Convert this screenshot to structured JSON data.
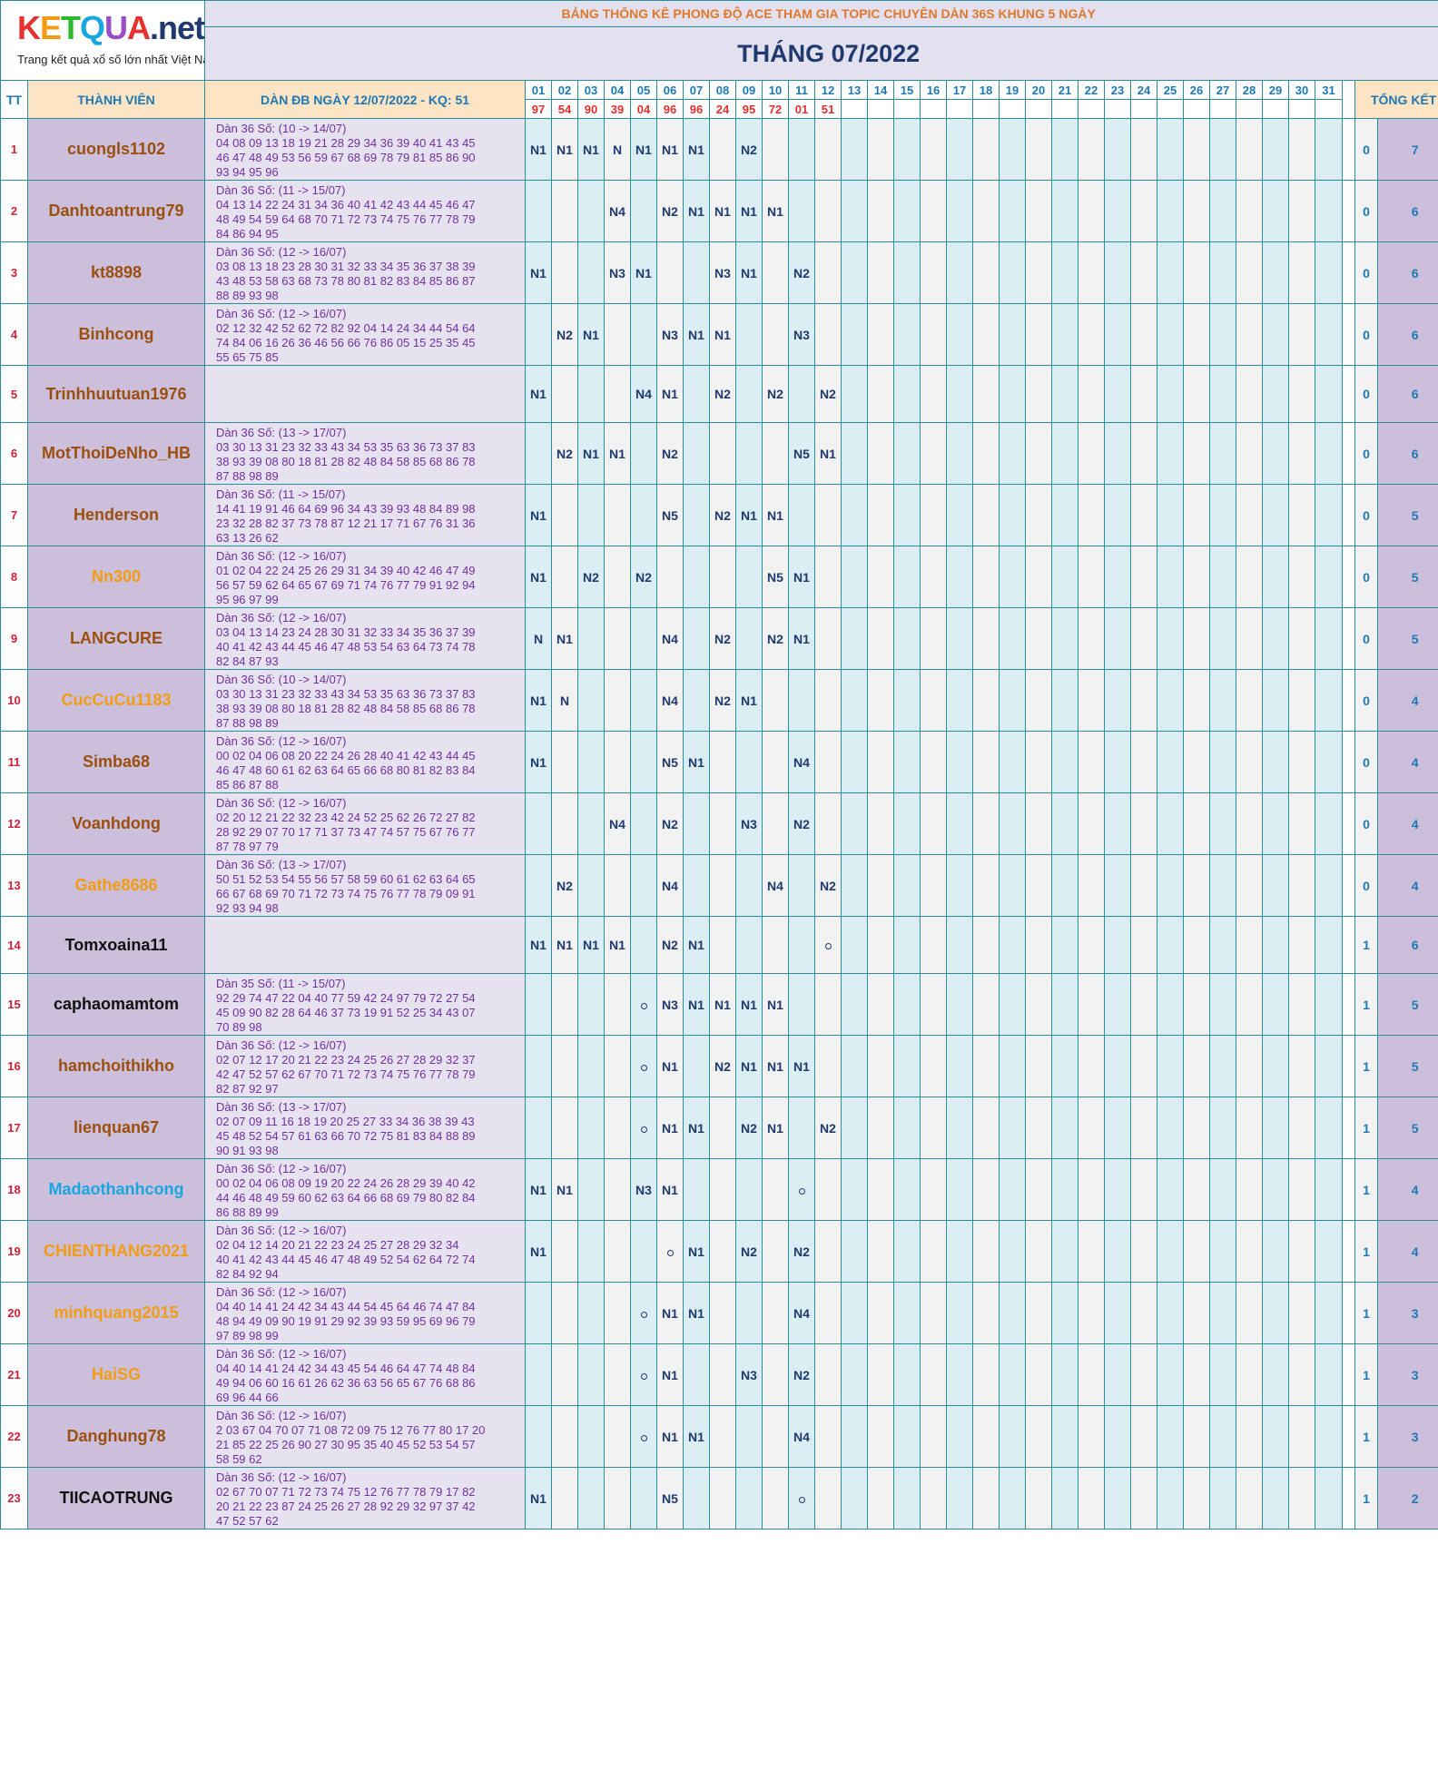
{
  "logo": {
    "brand": "KETQUA.net",
    "brand_prefix": "KETQUA",
    "brand_suffix": ".net",
    "tagline": "Trang kết quả xổ số lớn nhất Việt Nam"
  },
  "title": "BẢNG THỐNG KÊ PHONG ĐỘ ACE THAM GIA TOPIC CHUYÊN DÀN 36S KHUNG 5 NGÀY",
  "month": "THÁNG 07/2022",
  "headers": {
    "tt": "TT",
    "member": "THÀNH VIÊN",
    "dan": "DÀN ĐB NGÀY 12/07/2022 - KQ: 51",
    "total": "TỔNG KẾT"
  },
  "days": [
    "01",
    "02",
    "03",
    "04",
    "05",
    "06",
    "07",
    "08",
    "09",
    "10",
    "11",
    "12",
    "13",
    "14",
    "15",
    "16",
    "17",
    "18",
    "19",
    "20",
    "21",
    "22",
    "23",
    "24",
    "25",
    "26",
    "27",
    "28",
    "29",
    "30",
    "31"
  ],
  "results": [
    "97",
    "54",
    "90",
    "39",
    "04",
    "96",
    "96",
    "24",
    "95",
    "72",
    "01",
    "51",
    "",
    "",
    "",
    "",
    "",
    "",
    "",
    "",
    "",
    "",
    "",
    "",
    "",
    "",
    "",
    "",
    "",
    "",
    "",
    ""
  ],
  "colors": {
    "brown": "#9c4f0d",
    "orange": "#f39c12",
    "black": "#111111",
    "blue": "#1ba6e0",
    "cell_text": "#1f3a6e",
    "border": "#2b8c9a"
  },
  "rows": [
    {
      "tt": "1",
      "name": "cuongls1102",
      "color": "brown",
      "dan": [
        "Dàn 36 Số: (10 -> 14/07)",
        "04 08 09 13 18 19 21 28 29 34 36 39 40 41 43 45",
        "46 47 48 49 53 56 59 67 68 69 78 79 81 85 86 90",
        "93 94 95 96"
      ],
      "cells": [
        "N1",
        "N1",
        "N1",
        "N",
        "N1",
        "N1",
        "N1",
        "",
        "N2",
        "",
        "",
        ""
      ],
      "k1": "0",
      "k2": "7"
    },
    {
      "tt": "2",
      "name": "Danhtoantrung79",
      "color": "brown",
      "dan": [
        "Dàn 36 Số: (11 -> 15/07)",
        "04 13 14 22 24 31 34 36 40 41 42 43 44 45 46 47",
        "48 49 54 59 64 68 70 71 72 73 74 75 76 77 78 79",
        "84 86 94 95"
      ],
      "cells": [
        "",
        "",
        "",
        "N4",
        "",
        "N2",
        "N1",
        "N1",
        "N1",
        "N1",
        "",
        ""
      ],
      "k1": "0",
      "k2": "6"
    },
    {
      "tt": "3",
      "name": "kt8898",
      "color": "brown",
      "dan": [
        "Dàn 36 Số: (12 -> 16/07)",
        "03 08 13 18 23 28 30 31 32 33 34 35 36 37 38 39",
        "43 48 53 58 63 68 73 78 80 81 82 83 84 85 86 87",
        "88 89 93 98"
      ],
      "cells": [
        "N1",
        "",
        "",
        "N3",
        "N1",
        "",
        "",
        "N3",
        "N1",
        "",
        "N2",
        ""
      ],
      "k1": "0",
      "k2": "6"
    },
    {
      "tt": "4",
      "name": "Binhcong",
      "color": "brown",
      "dan": [
        "Dàn 36 Số: (12 -> 16/07)",
        "02 12 32 42 52 62 72 82 92 04 14 24 34 44 54 64",
        "74 84 06 16 26 36 46 56 66 76 86 05 15 25 35 45",
        "55 65 75 85"
      ],
      "cells": [
        "",
        "N2",
        "N1",
        "",
        "",
        "N3",
        "N1",
        "N1",
        "",
        "",
        "N3",
        ""
      ],
      "k1": "0",
      "k2": "6"
    },
    {
      "tt": "5",
      "name": "Trinhhuutuan1976",
      "color": "brown",
      "dan": [],
      "cells": [
        "N1",
        "",
        "",
        "",
        "N4",
        "N1",
        "",
        "N2",
        "",
        "N2",
        "",
        "N2"
      ],
      "k1": "0",
      "k2": "6"
    },
    {
      "tt": "6",
      "name": "MotThoiDeNho_HB",
      "color": "brown",
      "dan": [
        "Dàn 36 Số: (13 -> 17/07)",
        "03 30 13 31 23 32 33 43 34 53 35 63 36 73 37 83",
        "38 93 39 08 80 18 81 28 82 48 84 58 85 68 86 78",
        "87 88 98 89"
      ],
      "cells": [
        "",
        "N2",
        "N1",
        "N1",
        "",
        "N2",
        "",
        "",
        "",
        "",
        "N5",
        "N1"
      ],
      "k1": "0",
      "k2": "6"
    },
    {
      "tt": "7",
      "name": "Henderson",
      "color": "brown",
      "dan": [
        "Dàn 36 Số: (11 -> 15/07)",
        "14 41 19 91 46 64 69 96 34 43 39 93 48 84 89 98",
        "23 32 28 82 37 73 78 87 12 21 17 71 67 76 31 36",
        "63 13 26 62"
      ],
      "cells": [
        "N1",
        "",
        "",
        "",
        "",
        "N5",
        "",
        "N2",
        "N1",
        "N1",
        "",
        ""
      ],
      "k1": "0",
      "k2": "5"
    },
    {
      "tt": "8",
      "name": "Nn300",
      "color": "orange",
      "dan": [
        "Dàn 36 Số: (12 -> 16/07)",
        "01 02 04 22 24 25 26 29 31 34 39 40 42 46 47 49",
        "56 57 59 62 64 65 67 69 71 74 76 77 79 91 92 94",
        "95 96 97 99"
      ],
      "cells": [
        "N1",
        "",
        "N2",
        "",
        "N2",
        "",
        "",
        "",
        "",
        "N5",
        "N1",
        ""
      ],
      "k1": "0",
      "k2": "5"
    },
    {
      "tt": "9",
      "name": "LANGCURE",
      "color": "brown",
      "dan": [
        "Dàn 36 Số: (12 -> 16/07)",
        "03 04 13 14 23 24 28 30 31 32 33 34 35 36 37 39",
        "40 41 42 43 44 45 46 47 48 53 54 63 64 73 74 78",
        "82 84 87 93"
      ],
      "cells": [
        "N",
        "N1",
        "",
        "",
        "",
        "N4",
        "",
        "N2",
        "",
        "N2",
        "N1",
        ""
      ],
      "k1": "0",
      "k2": "5"
    },
    {
      "tt": "10",
      "name": "CucCuCu1183",
      "color": "orange",
      "dan": [
        "Dàn 36 Số: (10 -> 14/07)",
        "03 30 13 31 23 32 33 43 34 53 35 63 36 73 37 83",
        "38 93 39 08 80 18 81 28 82 48 84 58 85 68 86 78",
        "87 88 98 89"
      ],
      "cells": [
        "N1",
        "N",
        "",
        "",
        "",
        "N4",
        "",
        "N2",
        "N1",
        "",
        "",
        ""
      ],
      "k1": "0",
      "k2": "4"
    },
    {
      "tt": "11",
      "name": "Simba68",
      "color": "brown",
      "dan": [
        "Dàn 36 Số: (12 -> 16/07)",
        "00 02 04 06 08 20 22 24 26 28 40 41 42 43 44 45",
        "46 47 48 60 61 62 63 64 65 66 68 80 81 82 83 84",
        "85 86 87 88"
      ],
      "cells": [
        "N1",
        "",
        "",
        "",
        "",
        "N5",
        "N1",
        "",
        "",
        "",
        "N4",
        ""
      ],
      "k1": "0",
      "k2": "4"
    },
    {
      "tt": "12",
      "name": "Voanhdong",
      "color": "brown",
      "dan": [
        "Dàn 36 Số: (12 -> 16/07)",
        "02 20 12 21 22 32 23 42 24 52 25 62 26 72 27 82",
        "28 92 29 07 70 17 71 37 73 47 74 57 75 67 76 77",
        "87 78 97 79"
      ],
      "cells": [
        "",
        "",
        "",
        "N4",
        "",
        "N2",
        "",
        "",
        "N3",
        "",
        "N2",
        ""
      ],
      "k1": "0",
      "k2": "4"
    },
    {
      "tt": "13",
      "name": "Gathe8686",
      "color": "orange",
      "dan": [
        "Dàn 36 Số: (13 -> 17/07)",
        "50 51 52 53 54 55 56 57 58 59 60 61 62 63 64 65",
        "66 67 68 69 70 71 72 73 74 75 76 77 78 79 09 91",
        "92 93 94 98"
      ],
      "cells": [
        "",
        "N2",
        "",
        "",
        "",
        "N4",
        "",
        "",
        "",
        "N4",
        "",
        "N2"
      ],
      "k1": "0",
      "k2": "4"
    },
    {
      "tt": "14",
      "name": "Tomxoaina11",
      "color": "black",
      "dan": [],
      "cells": [
        "N1",
        "N1",
        "N1",
        "N1",
        "",
        "N2",
        "N1",
        "",
        "",
        "",
        "",
        "o"
      ],
      "k1": "1",
      "k2": "6"
    },
    {
      "tt": "15",
      "name": "caphaomamtom",
      "color": "black",
      "dan": [
        "Dàn 35 Số: (11 -> 15/07)",
        "92 29 74 47 22 04 40 77 59 42 24 97 79 72 27 54",
        "45 09 90 82 28 64 46 37 73 19 91 52 25 34 43 07",
        "70 89 98"
      ],
      "cells": [
        "",
        "",
        "",
        "",
        "o",
        "N3",
        "N1",
        "N1",
        "N1",
        "N1",
        "",
        ""
      ],
      "k1": "1",
      "k2": "5"
    },
    {
      "tt": "16",
      "name": "hamchoithikho",
      "color": "brown",
      "dan": [
        "Dàn 36 Số: (12 -> 16/07)",
        "02 07 12 17 20 21 22 23 24 25 26 27 28 29 32 37",
        "42 47 52 57 62 67 70 71 72 73 74 75 76 77 78 79",
        "82 87 92 97"
      ],
      "cells": [
        "",
        "",
        "",
        "",
        "o",
        "N1",
        "",
        "N2",
        "N1",
        "N1",
        "N1",
        ""
      ],
      "k1": "1",
      "k2": "5"
    },
    {
      "tt": "17",
      "name": "lienquan67",
      "color": "brown",
      "dan": [
        "Dàn 36 Số: (13 -> 17/07)",
        "02 07 09 11 16 18 19 20 25 27 33 34 36 38 39 43",
        "45 48 52 54 57 61 63 66 70 72 75 81 83 84 88 89",
        "90 91 93 98"
      ],
      "cells": [
        "",
        "",
        "",
        "",
        "o",
        "N1",
        "N1",
        "",
        "N2",
        "N1",
        "",
        "N2"
      ],
      "k1": "1",
      "k2": "5"
    },
    {
      "tt": "18",
      "name": "Madaothanhcong",
      "color": "blue",
      "dan": [
        "Dàn 36 Số: (12 -> 16/07)",
        "00 02 04 06 08 09 19 20 22 24 26 28 29 39 40 42",
        "44 46 48 49 59 60 62 63 64 66 68 69 79 80 82 84",
        "86 88 89 99"
      ],
      "cells": [
        "N1",
        "N1",
        "",
        "",
        "N3",
        "N1",
        "",
        "",
        "",
        "",
        "o",
        ""
      ],
      "k1": "1",
      "k2": "4"
    },
    {
      "tt": "19",
      "name": "CHIENTHANG2021",
      "color": "orange",
      "dan": [
        "Dàn 36 Số: (12 -> 16/07)",
        "02 04 12 14 20 21 22 23 24 25 27 28 29 32 34",
        "40 41 42 43 44 45 46 47 48 49 52 54 62 64 72 74",
        "82 84 92 94"
      ],
      "cells": [
        "N1",
        "",
        "",
        "",
        "",
        "o",
        "N1",
        "",
        "N2",
        "",
        "N2",
        ""
      ],
      "k1": "1",
      "k2": "4"
    },
    {
      "tt": "20",
      "name": "minhquang2015",
      "color": "orange",
      "dan": [
        "Dàn 36 Số: (12 -> 16/07)",
        "04 40 14 41 24 42 34 43 44 54 45 64 46 74 47 84",
        "48 94 49 09 90 19 91 29 92 39 93 59 95 69 96 79",
        "97 89 98 99"
      ],
      "cells": [
        "",
        "",
        "",
        "",
        "o",
        "N1",
        "N1",
        "",
        "",
        "",
        "N4",
        ""
      ],
      "k1": "1",
      "k2": "3"
    },
    {
      "tt": "21",
      "name": "HaiSG",
      "color": "orange",
      "dan": [
        "Dàn 36 Số: (12 -> 16/07)",
        "04 40 14 41 24 42 34 43 45 54 46 64 47 74 48 84",
        "49 94 06 60 16 61 26 62 36 63 56 65 67 76 68 86",
        "69 96 44 66"
      ],
      "cells": [
        "",
        "",
        "",
        "",
        "o",
        "N1",
        "",
        "",
        "N3",
        "",
        "N2",
        ""
      ],
      "k1": "1",
      "k2": "3"
    },
    {
      "tt": "22",
      "name": "Danghung78",
      "color": "brown",
      "dan": [
        "Dàn 36 Số: (12 -> 16/07)",
        "2 03 67 04 70 07 71 08 72 09 75 12 76 77 80 17 20",
        "21 85 22 25 26 90 27 30 95 35 40 45 52 53 54 57",
        "58 59 62"
      ],
      "cells": [
        "",
        "",
        "",
        "",
        "o",
        "N1",
        "N1",
        "",
        "",
        "",
        "N4",
        ""
      ],
      "k1": "1",
      "k2": "3"
    },
    {
      "tt": "23",
      "name": "TIICAOTRUNG",
      "color": "black",
      "dan": [
        "Dàn 36 Số: (12 -> 16/07)",
        "02 67 70 07 71 72 73 74 75 12 76 77 78 79 17 82",
        "20 21 22 23 87 24 25 26 27 28 92 29 32 97 37 42",
        "47 52 57 62"
      ],
      "cells": [
        "N1",
        "",
        "",
        "",
        "",
        "N5",
        "",
        "",
        "",
        "",
        "o",
        ""
      ],
      "k1": "1",
      "k2": "2"
    }
  ]
}
